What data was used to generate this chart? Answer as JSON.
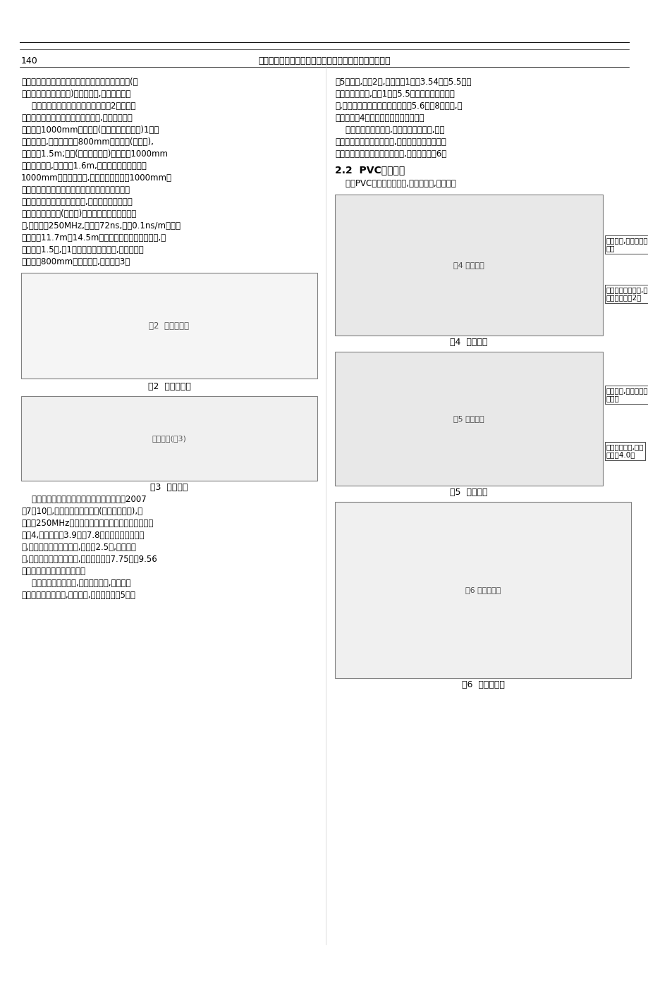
{
  "page_num": "140",
  "header_text": "刘传逢　张晓章　刘文光",
  "header_subtitle": "探地雷达在管道探查中的应用",
  "bg_color": "#ffffff",
  "text_color": "#000000",
  "left_col": {
    "para1": "的方法确定其走向。给水砼管与排水管道探测条件(材质同且内部充满水介质)、方法类似,在此不赘述。",
    "para2": "排水管道波形异常呈明显圆弧形。图2是武汉经济技术开发区后官湖大道地下管线图,在后官湖大道北侧管径1000mm雨水管道(下简称为目标管道)1号检修井中发现,往北有一废弃800mm排水管道(已封堵),管顶埋深1.5m;往东(全力一路方向)有一管径1000mm雨水管道在用,管顶埋深1.6m,推测其与全力一路管径1000mm雨水管道相连,但在全力一路管径1000mm雨水管道附近检修井中均未发现有后官湖方向目标管道。为查明目标管道准确走向,在后官湖大道与全力一路分别布置平行(剖面一)、垂直于目标管道雷达剖面,天线频率250MHz,时窗为72ns,波速0.1ns/m。雷达剖面二、11.7m、14.5m位置显示两大口径管道异常,管顶埋深约1.5米,与1号井中调查情况相符,推断为上述废弃管径800mm及目标管道,走向如图3。",
    "fig3_caption": "图3  雷达图像",
    "para3": "排水箱涵在其边界处电磁波绕射现象明显。2007年7月10日,在新华路民生大楼前(一号雷达剖面),现场采用250MHz天线探地雷达探查排水箱涵。雷达图像见图4,平面位置在3.9米至7.8米间有两明显弧形异常,推断为两排水箱涵在侧,埋深约2.5米,同相轴断裂,有一明显排水箱涵异常,水平位置分别7.75米、9.56米处有明显边界绕射波现象。",
    "para4": "为确认对异常的推断,平行一号剖面,在人行道上布设二号雷达剖面,进行探查,雷达图像如图5。从"
  },
  "right_col": {
    "para1": "图5可看出,埋深2米,水平位置1米、3.54米、5.5米处同相轴错断明显,推断1米至5.5米之间存在一排水箱涵,中间承重墙隔开。在该异常右侧5.6米、8米之间,同样存在与图4中形状相似排水箱涵异常。",
    "para2": "综合两雷达探查结果,结合现场调查情况,认为现场并排分布有两排水箱涵,其中一条排水箱涵在人行道电信管道附近变为两条管道,详细情况见图6。",
    "section": "2.2  PVC管道探测",
    "para3": "由于PVC材料防腐性能好,且成本低廉,所以称为",
    "fig4_caption": "图4  雷达图像",
    "fig5_caption": "图5  雷达图像",
    "fig6_caption": "图6  管道分布图",
    "annotation1": "不明异常,推断为排水箱涵",
    "annotation2": "两条排水管道异常,断面尺寸分别近2米",
    "annotation3": "不明异常,推断为排水水箱涵",
    "annotation4": "目标箱涵异常,断面尺寸约4.0米"
  }
}
